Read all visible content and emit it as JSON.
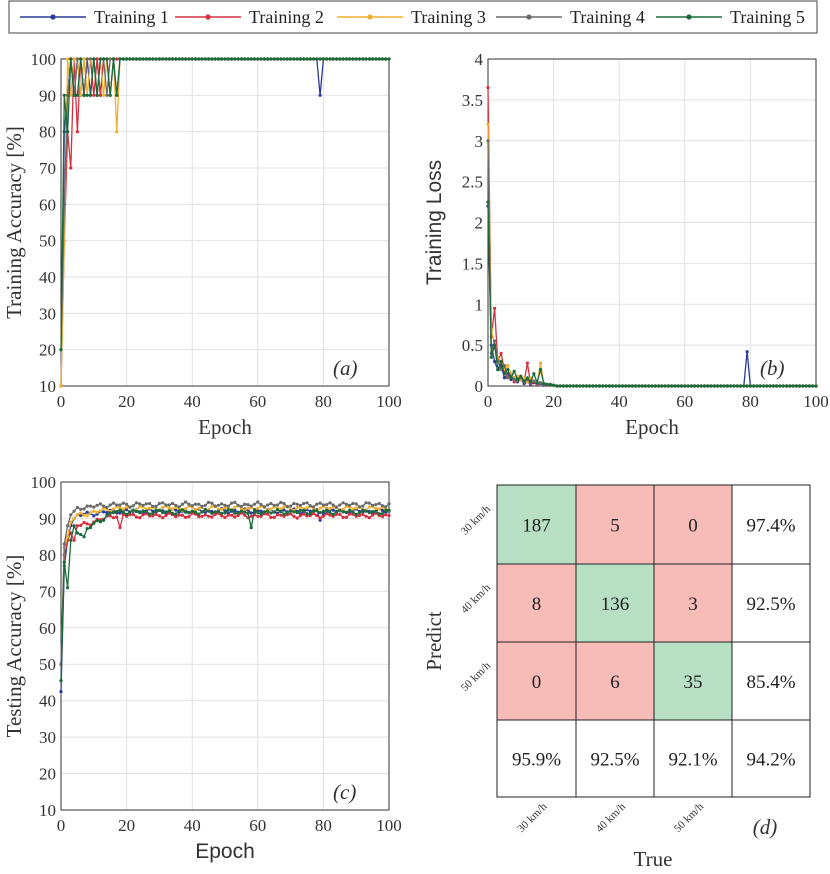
{
  "legend": [
    "Training 1",
    "Training 2",
    "Training 3",
    "Training 4",
    "Training 5"
  ],
  "colors": [
    "#2a3a9a",
    "#d43040",
    "#f0b030",
    "#6a6a6a",
    "#1a6a3a"
  ],
  "chart_data": [
    {
      "id": "a",
      "type": "line",
      "panel_label": "(a)",
      "xlabel": "Epoch",
      "ylabel": "Training Accuracy [%]",
      "xlim": [
        0,
        100
      ],
      "ylim": [
        10,
        100
      ],
      "xticks": [
        0,
        20,
        40,
        60,
        80,
        100
      ],
      "yticks": [
        10,
        20,
        30,
        40,
        50,
        60,
        70,
        80,
        90,
        100
      ],
      "grid": true,
      "x": [
        0,
        1,
        2,
        3,
        4,
        5,
        6,
        7,
        8,
        9,
        10,
        11,
        12,
        13,
        14,
        15,
        16,
        17,
        18,
        19,
        20
      ],
      "series": [
        {
          "name": "Training 1",
          "values": [
            10,
            80,
            90,
            100,
            90,
            100,
            90,
            90,
            100,
            90,
            100,
            100,
            90,
            100,
            100,
            100,
            100,
            100,
            100,
            100,
            100
          ],
          "tail": [
            [
              78,
              100
            ],
            [
              79,
              90
            ],
            [
              80,
              100
            ]
          ]
        },
        {
          "name": "Training 2",
          "values": [
            10,
            50,
            80,
            70,
            100,
            80,
            100,
            90,
            100,
            100,
            90,
            100,
            90,
            100,
            100,
            90,
            100,
            100,
            100,
            100,
            100
          ]
        },
        {
          "name": "Training 3",
          "values": [
            10,
            50,
            100,
            90,
            100,
            100,
            90,
            100,
            90,
            100,
            100,
            90,
            100,
            90,
            100,
            100,
            100,
            80,
            100,
            100,
            100
          ]
        },
        {
          "name": "Training 4",
          "values": [
            20,
            60,
            90,
            100,
            90,
            100,
            100,
            90,
            100,
            100,
            100,
            90,
            100,
            100,
            90,
            100,
            100,
            90,
            100,
            100,
            100
          ]
        },
        {
          "name": "Training 5",
          "values": [
            20,
            90,
            80,
            100,
            90,
            90,
            100,
            90,
            90,
            90,
            100,
            90,
            100,
            100,
            100,
            90,
            100,
            90,
            100,
            100,
            100
          ]
        }
      ],
      "final_value": 100
    },
    {
      "id": "b",
      "type": "line",
      "panel_label": "(b)",
      "xlabel": "Epoch",
      "ylabel": "Training Loss",
      "xlim": [
        0,
        100
      ],
      "ylim": [
        0,
        4
      ],
      "xticks": [
        0,
        20,
        40,
        60,
        80,
        100
      ],
      "yticks": [
        0,
        0.5,
        1,
        1.5,
        2,
        2.5,
        3,
        3.5,
        4
      ],
      "grid": true,
      "x": [
        0,
        1,
        2,
        3,
        4,
        5,
        6,
        7,
        8,
        9,
        10,
        11,
        12,
        13,
        14,
        15,
        16,
        17,
        18,
        19,
        20
      ],
      "series": [
        {
          "name": "Training 1",
          "values": [
            2.2,
            0.5,
            0.3,
            0.2,
            0.25,
            0.1,
            0.15,
            0.08,
            0.1,
            0.05,
            0.08,
            0.03,
            0.05,
            0.02,
            0.04,
            0.02,
            0.03,
            0.01,
            0.02,
            0.01,
            0.01
          ],
          "tail": [
            [
              78,
              0.0
            ],
            [
              79,
              0.42
            ],
            [
              80,
              0.0
            ]
          ]
        },
        {
          "name": "Training 2",
          "values": [
            3.65,
            0.6,
            0.95,
            0.3,
            0.4,
            0.2,
            0.1,
            0.15,
            0.05,
            0.1,
            0.08,
            0.05,
            0.28,
            0.03,
            0.05,
            0.02,
            0.04,
            0.02,
            0.01,
            0.01,
            0.01
          ]
        },
        {
          "name": "Training 3",
          "values": [
            3.2,
            0.7,
            0.5,
            0.35,
            0.3,
            0.2,
            0.25,
            0.15,
            0.1,
            0.12,
            0.08,
            0.1,
            0.05,
            0.1,
            0.06,
            0.04,
            0.28,
            0.03,
            0.02,
            0.02,
            0.01
          ]
        },
        {
          "name": "Training 4",
          "values": [
            3.0,
            0.4,
            0.55,
            0.3,
            0.2,
            0.25,
            0.1,
            0.12,
            0.08,
            0.06,
            0.1,
            0.05,
            0.08,
            0.04,
            0.06,
            0.03,
            0.04,
            0.02,
            0.02,
            0.01,
            0.01
          ]
        },
        {
          "name": "Training 5",
          "values": [
            2.25,
            0.35,
            0.5,
            0.2,
            0.3,
            0.15,
            0.2,
            0.1,
            0.18,
            0.08,
            0.12,
            0.06,
            0.1,
            0.05,
            0.15,
            0.04,
            0.2,
            0.03,
            0.02,
            0.02,
            0.01
          ]
        }
      ],
      "final_value": 0
    },
    {
      "id": "c",
      "type": "line",
      "panel_label": "(c)",
      "xlabel": "Epoch",
      "ylabel": "Testing Accuracy [%]",
      "xlim": [
        0,
        100
      ],
      "ylim": [
        10,
        100
      ],
      "xticks": [
        0,
        20,
        40,
        60,
        80,
        100
      ],
      "yticks": [
        10,
        20,
        30,
        40,
        50,
        60,
        70,
        80,
        90,
        100
      ],
      "grid": true,
      "series": [
        {
          "name": "Training 1",
          "start": [
            42.5,
            77,
            84,
            88,
            90,
            91
          ],
          "plateau": 92.0,
          "dips": [
            [
              79,
              89.5
            ]
          ]
        },
        {
          "name": "Training 2",
          "start": [
            50,
            80,
            84,
            86,
            84,
            88
          ],
          "plateau": 90.8,
          "dips": [
            [
              18,
              87.5
            ]
          ]
        },
        {
          "name": "Training 3",
          "start": [
            50,
            82,
            85,
            89,
            90,
            91
          ],
          "plateau": 92.8,
          "dips": []
        },
        {
          "name": "Training 4",
          "start": [
            50,
            83,
            88,
            91,
            92,
            93
          ],
          "plateau": 93.8,
          "dips": []
        },
        {
          "name": "Training 5",
          "start": [
            45.5,
            78,
            71,
            84,
            88,
            86
          ],
          "plateau": 91.8,
          "dips": [
            [
              58,
              87.5
            ],
            [
              7,
              85
            ]
          ]
        }
      ]
    },
    {
      "id": "d",
      "type": "heatmap",
      "panel_label": "(d)",
      "xlabel": "True",
      "ylabel": "Predict",
      "row_labels": [
        "30 km/h",
        "40 km/h",
        "50 km/h"
      ],
      "col_labels": [
        "30 km/h",
        "40 km/h",
        "50 km/h"
      ],
      "matrix": [
        [
          187,
          5,
          0
        ],
        [
          8,
          136,
          3
        ],
        [
          0,
          6,
          35
        ]
      ],
      "row_totals": [
        "97.4%",
        "92.5%",
        "85.4%"
      ],
      "col_totals": [
        "95.9%",
        "92.5%",
        "92.1%"
      ],
      "overall": "94.2%",
      "diag_color": "#b6dfc3",
      "offdiag_color": "#f7bcb7"
    }
  ]
}
